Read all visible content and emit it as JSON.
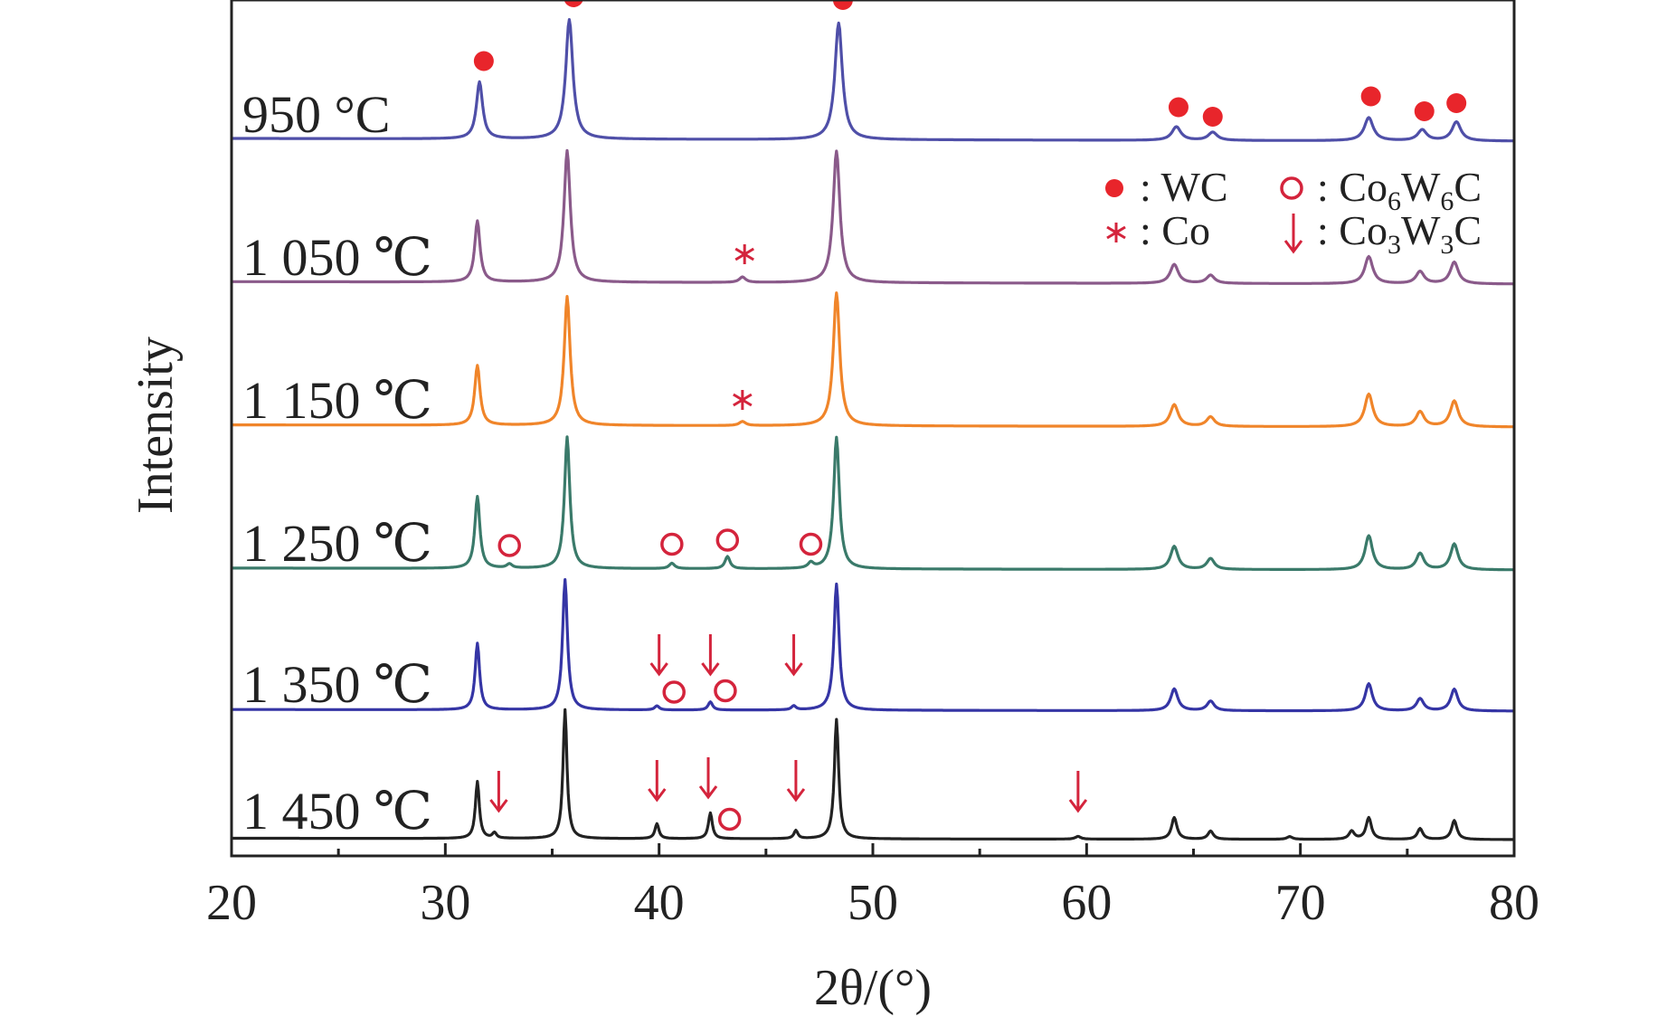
{
  "chart_data": {
    "type": "line",
    "title": "",
    "xlabel": "2θ/(°)",
    "ylabel": "Intensity",
    "xlim": [
      20,
      80
    ],
    "x_ticks": [
      "20",
      "30",
      "40",
      "50",
      "60",
      "70",
      "80"
    ],
    "grid": false,
    "legend_placement": "top-right",
    "legend": [
      {
        "key": "WC",
        "marker": "filled-circle",
        "text": ": WC"
      },
      {
        "key": "Co6W6C",
        "marker": "open-circle",
        "text_main": ": Co",
        "sub1": "6",
        "text_mid": "W",
        "sub2": "6",
        "text_end": "C"
      },
      {
        "key": "Co",
        "marker": "asterisk",
        "text": ": Co"
      },
      {
        "key": "Co3W3C",
        "marker": "arrow",
        "text_main": ": Co",
        "sub1": "3",
        "text_mid": "W",
        "sub2": "3",
        "text_end": "C"
      }
    ],
    "marker_colors": {
      "WC": "#e8252b",
      "Co6W6C": "#d4243c",
      "Co": "#d4243c",
      "Co3W3C": "#d4243c"
    },
    "peak_shape": "relative_intensity_vs_2theta",
    "series": [
      {
        "name": "950 °C",
        "color": "#4f4fa8",
        "peaks": [
          [
            31.6,
            0.42,
            0.35
          ],
          [
            35.8,
            0.88,
            0.4
          ],
          [
            48.4,
            0.86,
            0.42
          ],
          [
            64.2,
            0.1,
            0.5
          ],
          [
            65.9,
            0.06,
            0.5
          ],
          [
            73.2,
            0.17,
            0.5
          ],
          [
            75.7,
            0.08,
            0.5
          ],
          [
            77.3,
            0.14,
            0.5
          ]
        ],
        "markers": [
          {
            "type": "WC",
            "x": 31.8,
            "y": 0.59
          },
          {
            "type": "WC",
            "x": 36.0,
            "y": 1.06
          },
          {
            "type": "WC",
            "x": 48.6,
            "y": 1.04
          },
          {
            "type": "WC",
            "x": 64.3,
            "y": 0.25
          },
          {
            "type": "WC",
            "x": 65.9,
            "y": 0.18
          },
          {
            "type": "WC",
            "x": 73.3,
            "y": 0.33
          },
          {
            "type": "WC",
            "x": 75.8,
            "y": 0.22
          },
          {
            "type": "WC",
            "x": 77.3,
            "y": 0.28
          }
        ]
      },
      {
        "name": "1 050 ℃",
        "color": "#8a5a8a",
        "peaks": [
          [
            31.5,
            0.45,
            0.3
          ],
          [
            35.7,
            0.97,
            0.35
          ],
          [
            43.9,
            0.04,
            0.35
          ],
          [
            48.3,
            0.97,
            0.38
          ],
          [
            64.1,
            0.14,
            0.45
          ],
          [
            65.8,
            0.06,
            0.45
          ],
          [
            73.2,
            0.2,
            0.45
          ],
          [
            75.6,
            0.09,
            0.45
          ],
          [
            77.2,
            0.16,
            0.45
          ]
        ],
        "markers": [
          {
            "type": "Co",
            "x": 44.0,
            "y": 0.22
          }
        ]
      },
      {
        "name": "1 150 ℃",
        "color": "#f0852a",
        "peaks": [
          [
            31.5,
            0.44,
            0.3
          ],
          [
            35.7,
            0.95,
            0.33
          ],
          [
            43.9,
            0.03,
            0.35
          ],
          [
            48.3,
            0.98,
            0.36
          ],
          [
            64.1,
            0.16,
            0.45
          ],
          [
            65.8,
            0.07,
            0.45
          ],
          [
            73.2,
            0.24,
            0.45
          ],
          [
            75.6,
            0.11,
            0.45
          ],
          [
            77.2,
            0.19,
            0.45
          ]
        ],
        "markers": [
          {
            "type": "Co",
            "x": 43.9,
            "y": 0.2
          }
        ]
      },
      {
        "name": "1 250 ℃",
        "color": "#3a7a6a",
        "peaks": [
          [
            31.5,
            0.53,
            0.28
          ],
          [
            33.0,
            0.03,
            0.3
          ],
          [
            35.7,
            0.97,
            0.3
          ],
          [
            40.6,
            0.04,
            0.3
          ],
          [
            43.2,
            0.09,
            0.28
          ],
          [
            47.1,
            0.04,
            0.3
          ],
          [
            48.3,
            0.97,
            0.32
          ],
          [
            64.1,
            0.17,
            0.42
          ],
          [
            65.8,
            0.08,
            0.42
          ],
          [
            73.2,
            0.25,
            0.42
          ],
          [
            75.6,
            0.12,
            0.42
          ],
          [
            77.2,
            0.19,
            0.42
          ]
        ],
        "markers": [
          {
            "type": "Co6W6C",
            "x": 33.0,
            "y": 0.18
          },
          {
            "type": "Co6W6C",
            "x": 40.6,
            "y": 0.19
          },
          {
            "type": "Co6W6C",
            "x": 43.2,
            "y": 0.22
          },
          {
            "type": "Co6W6C",
            "x": 47.1,
            "y": 0.19
          }
        ]
      },
      {
        "name": "1 350 ℃",
        "color": "#3535a5",
        "peaks": [
          [
            31.5,
            0.49,
            0.25
          ],
          [
            35.6,
            0.96,
            0.27
          ],
          [
            39.9,
            0.03,
            0.25
          ],
          [
            42.4,
            0.06,
            0.25
          ],
          [
            46.3,
            0.03,
            0.25
          ],
          [
            48.3,
            0.93,
            0.29
          ],
          [
            64.1,
            0.16,
            0.4
          ],
          [
            65.8,
            0.07,
            0.4
          ],
          [
            73.2,
            0.2,
            0.4
          ],
          [
            75.6,
            0.09,
            0.4
          ],
          [
            77.2,
            0.16,
            0.4
          ]
        ],
        "markers": [
          {
            "type": "Co3W3C",
            "x": 40.0,
            "y": 0.42
          },
          {
            "type": "Co3W3C",
            "x": 42.4,
            "y": 0.42
          },
          {
            "type": "Co3W3C",
            "x": 46.3,
            "y": 0.42
          },
          {
            "type": "Co6W6C",
            "x": 40.7,
            "y": 0.14
          },
          {
            "type": "Co6W6C",
            "x": 43.1,
            "y": 0.15
          }
        ]
      },
      {
        "name": "1 450 ℃",
        "color": "#222222",
        "peaks": [
          [
            31.5,
            0.42,
            0.22
          ],
          [
            32.3,
            0.04,
            0.22
          ],
          [
            35.6,
            0.95,
            0.22
          ],
          [
            39.9,
            0.11,
            0.22
          ],
          [
            42.4,
            0.19,
            0.22
          ],
          [
            46.4,
            0.06,
            0.22
          ],
          [
            48.3,
            0.88,
            0.24
          ],
          [
            59.6,
            0.02,
            0.3
          ],
          [
            64.1,
            0.16,
            0.3
          ],
          [
            65.8,
            0.06,
            0.3
          ],
          [
            69.5,
            0.02,
            0.3
          ],
          [
            72.4,
            0.06,
            0.3
          ],
          [
            73.2,
            0.16,
            0.3
          ],
          [
            75.6,
            0.08,
            0.3
          ],
          [
            77.2,
            0.14,
            0.3
          ]
        ],
        "markers": [
          {
            "type": "Co3W3C",
            "x": 32.5,
            "y": 0.36
          },
          {
            "type": "Co3W3C",
            "x": 39.9,
            "y": 0.44
          },
          {
            "type": "Co3W3C",
            "x": 42.3,
            "y": 0.46
          },
          {
            "type": "Co3W3C",
            "x": 46.4,
            "y": 0.44
          },
          {
            "type": "Co3W3C",
            "x": 59.6,
            "y": 0.36
          },
          {
            "type": "Co6W6C",
            "x": 43.3,
            "y": 0.15
          }
        ]
      }
    ]
  }
}
